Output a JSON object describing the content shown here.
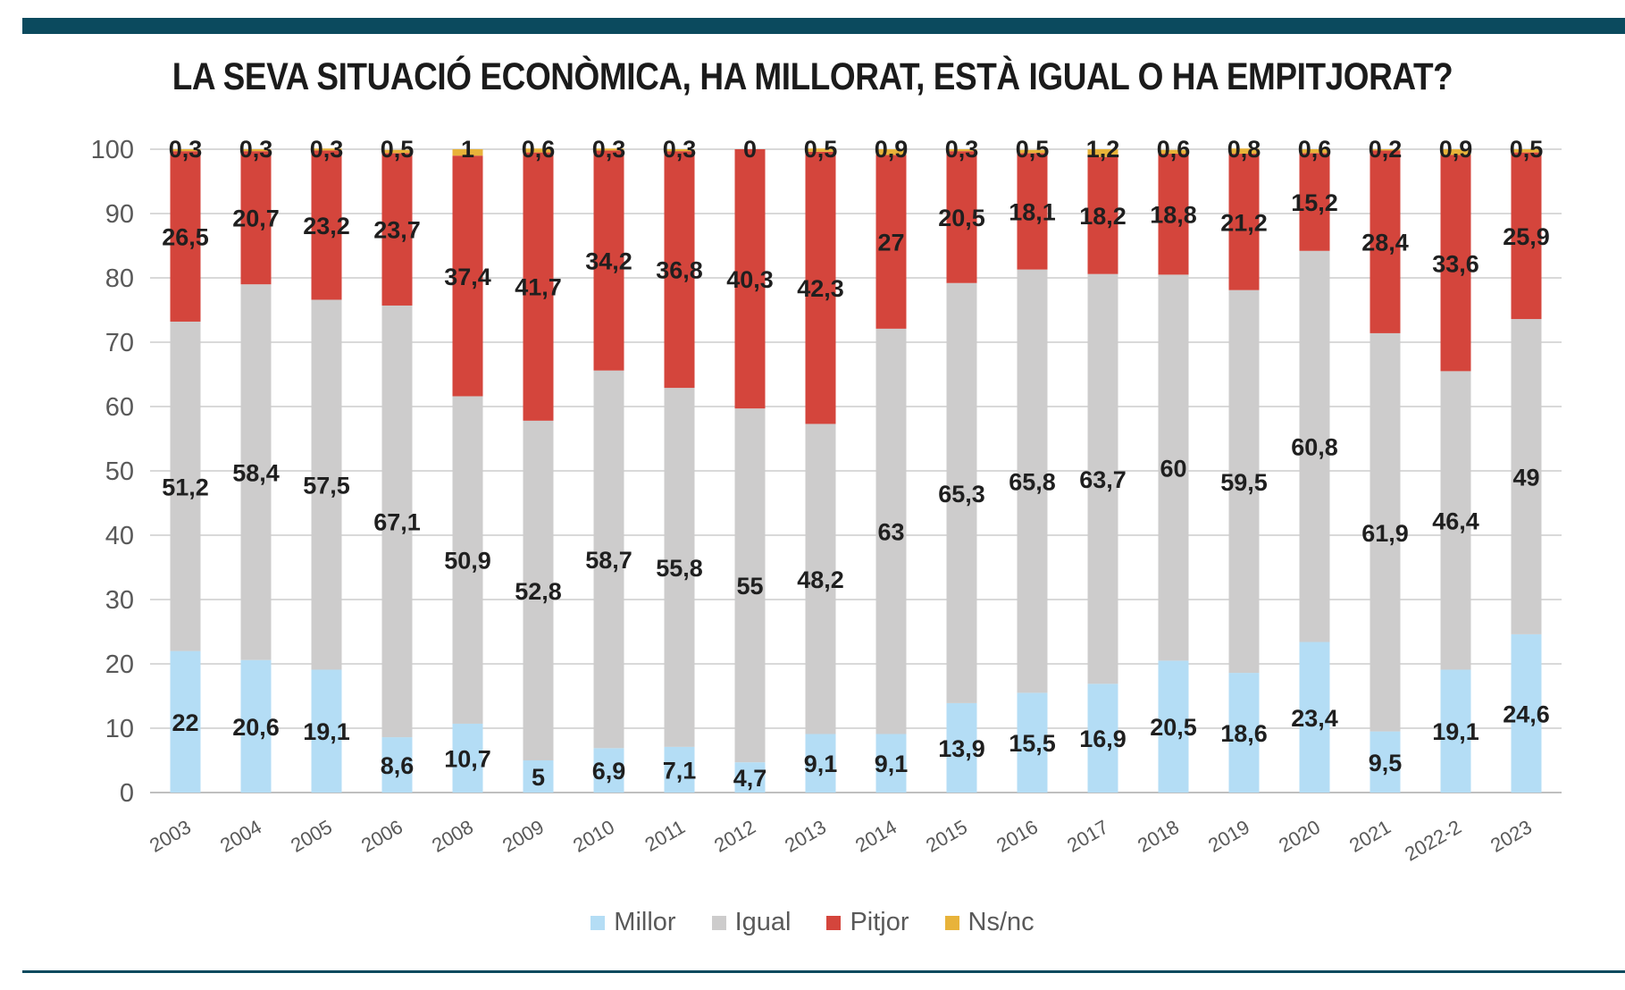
{
  "title": "LA SEVA SITUACIÓ ECONÒMICA, HA MILLORAT, ESTÀ IGUAL O HA EMPITJORAT?",
  "colors": {
    "Millor": "#b4ddf5",
    "Igual": "#cdcccc",
    "Pitjor": "#d4453c",
    "Ns/nc": "#e8b33a",
    "rule": "#0b4a5e"
  },
  "chart_data": {
    "type": "bar",
    "stacked": true,
    "categories": [
      "2003",
      "2004",
      "2005",
      "2006",
      "2008",
      "2009",
      "2010",
      "2011",
      "2012",
      "2013",
      "2014",
      "2015",
      "2016",
      "2017",
      "2018",
      "2019",
      "2020",
      "2021",
      "2022-2",
      "2023"
    ],
    "series": [
      {
        "name": "Millor",
        "values": [
          22,
          20.6,
          19.1,
          8.6,
          10.7,
          5,
          6.9,
          7.1,
          4.7,
          9.1,
          9.1,
          13.9,
          15.5,
          16.9,
          20.5,
          18.6,
          23.4,
          9.5,
          19.1,
          24.6
        ]
      },
      {
        "name": "Igual",
        "values": [
          51.2,
          58.4,
          57.5,
          67.1,
          50.9,
          52.8,
          58.7,
          55.8,
          55,
          48.2,
          63,
          65.3,
          65.8,
          63.7,
          60,
          59.5,
          60.8,
          61.9,
          46.4,
          49
        ]
      },
      {
        "name": "Pitjor",
        "values": [
          26.5,
          20.7,
          23.2,
          23.7,
          37.4,
          41.7,
          34.2,
          36.8,
          40.3,
          42.3,
          27,
          20.5,
          18.1,
          18.2,
          18.8,
          21.2,
          15.2,
          28.4,
          33.6,
          25.9
        ]
      },
      {
        "name": "Ns/nc",
        "values": [
          0.3,
          0.3,
          0.3,
          0.5,
          1,
          0.6,
          0.3,
          0.3,
          0,
          0.5,
          0.9,
          0.3,
          0.5,
          1.2,
          0.6,
          0.8,
          0.6,
          0.2,
          0.9,
          0.5
        ]
      }
    ],
    "ylim": [
      0,
      100
    ],
    "yticks": [
      "0",
      "10",
      "20",
      "30",
      "40",
      "50",
      "60",
      "70",
      "80",
      "90",
      "100"
    ],
    "grid": true,
    "legend": "bottom",
    "decimal_separator": ","
  }
}
